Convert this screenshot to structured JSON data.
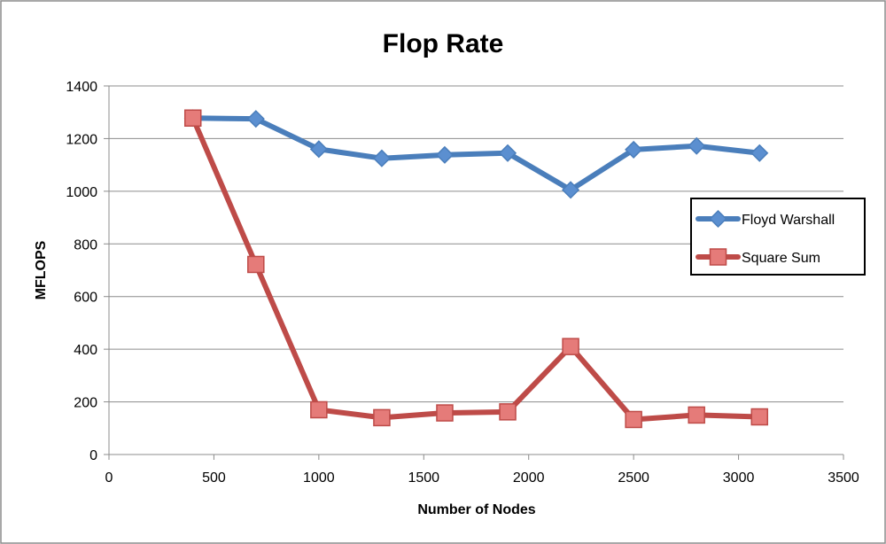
{
  "chart_data": {
    "type": "line",
    "title": "Flop Rate",
    "xlabel": "Number of Nodes",
    "ylabel": "MFLOPS",
    "xlim": [
      0,
      3500
    ],
    "ylim": [
      0,
      1400
    ],
    "xticks": [
      0,
      500,
      1000,
      1500,
      2000,
      2500,
      3000,
      3500
    ],
    "yticks": [
      0,
      200,
      400,
      600,
      800,
      1000,
      1200,
      1400
    ],
    "x": [
      400,
      700,
      1000,
      1300,
      1600,
      1900,
      2200,
      2500,
      2800,
      3100
    ],
    "series": [
      {
        "name": "Floyd Warshall",
        "color": "#4a7ebb",
        "fill": "#5b8fd0",
        "marker": "diamond",
        "values": [
          1278,
          1275,
          1160,
          1125,
          1138,
          1145,
          1005,
          1158,
          1172,
          1145
        ]
      },
      {
        "name": "Square Sum",
        "color": "#be4b48",
        "fill": "#e57b79",
        "marker": "square",
        "values": [
          1278,
          722,
          170,
          140,
          158,
          162,
          410,
          133,
          150,
          143
        ]
      }
    ],
    "grid": "horizontal",
    "legend_position": "right",
    "frame_border_color": "#8c8c8c",
    "gridline_color": "#8c8c8c"
  }
}
